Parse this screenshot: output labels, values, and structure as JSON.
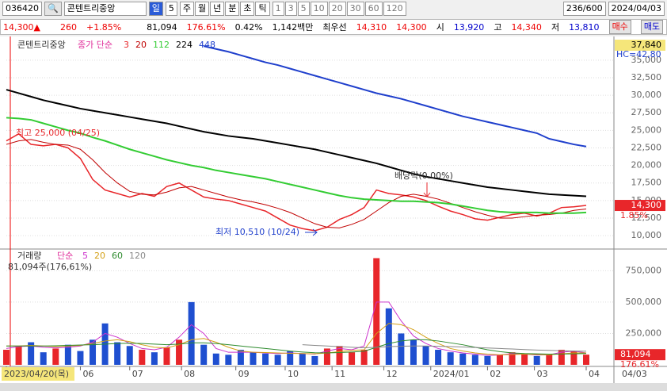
{
  "toolbar": {
    "code": "036420",
    "name": "콘텐트리중앙",
    "period": "일",
    "period_n": "5",
    "units": [
      "주",
      "월",
      "년",
      "분",
      "초",
      "틱"
    ],
    "nums": [
      "1",
      "3",
      "5",
      "10",
      "20",
      "30",
      "60",
      "120"
    ],
    "count": "236/600",
    "date": "2024/04/03"
  },
  "quote": {
    "price": "14,300▲",
    "change": "260",
    "rate": "+1.85%",
    "volume": "81,094",
    "vol_rate": "176.61%",
    "turnover": "0.42%",
    "amount": "1,142백만",
    "best": "최우선",
    "ask": "14,310",
    "bid": "14,300",
    "open_label": "시",
    "open": "13,920",
    "high_label": "고",
    "high": "14,340",
    "low_label": "저",
    "low": "13,810",
    "buy": "매수",
    "sell": "매도"
  },
  "chart_data": [
    {
      "type": "line",
      "legend_name": "콘텐트리중앙",
      "legend_prefix": "종가 단순",
      "top_label": "37,840",
      "hc_label": "HC=42,80",
      "last_label": "14,300",
      "last_rate": "1.85%",
      "annotations": [
        "최고 25,000 (04/25)",
        "최저 10,510 (10/24)",
        "배당락(0.00%)"
      ],
      "x": [
        0,
        5,
        10,
        15,
        20,
        25,
        30,
        35,
        40,
        45,
        50,
        55,
        60,
        65,
        70,
        75,
        80,
        85,
        90,
        95,
        100,
        105,
        110,
        115,
        120,
        125,
        130,
        135,
        140,
        145,
        150,
        155,
        160,
        165,
        170,
        175,
        180,
        185,
        190,
        195,
        200,
        205,
        210,
        215,
        220,
        225,
        230,
        235
      ],
      "xlim": [
        0,
        235
      ],
      "xticks": [
        {
          "value": 0,
          "label": "2023/04/20(목)"
        },
        {
          "value": 30,
          "label": "06"
        },
        {
          "value": 50,
          "label": "07"
        },
        {
          "value": 71,
          "label": "08"
        },
        {
          "value": 93,
          "label": "09"
        },
        {
          "value": 113,
          "label": "10"
        },
        {
          "value": 132,
          "label": "11"
        },
        {
          "value": 153,
          "label": "12"
        },
        {
          "value": 172,
          "label": "2024/01"
        },
        {
          "value": 195,
          "label": "02"
        },
        {
          "value": 214,
          "label": "03"
        },
        {
          "value": 235,
          "label": "04"
        }
      ],
      "xaxis_end": "04/03",
      "ylim": [
        8200,
        37700
      ],
      "yticks": [
        {
          "value": 10000,
          "label": "10,000"
        },
        {
          "value": 12500,
          "label": "12,500"
        },
        {
          "value": 15000,
          "label": "15,000"
        },
        {
          "value": 17500,
          "label": "17,500"
        },
        {
          "value": 20000,
          "label": "20,000"
        },
        {
          "value": 22500,
          "label": "22,500"
        },
        {
          "value": 25000,
          "label": "25,000"
        },
        {
          "value": 27500,
          "label": "27,500"
        },
        {
          "value": 30000,
          "label": "30,000"
        },
        {
          "value": 32500,
          "label": "32,500"
        },
        {
          "value": 35000,
          "label": "35,000"
        }
      ],
      "series": [
        {
          "name": "3",
          "color": "#e8262a",
          "values": [
            23500,
            24500,
            23000,
            22800,
            23000,
            22500,
            21000,
            18000,
            16500,
            16000,
            15500,
            16000,
            15600,
            17000,
            17500,
            16500,
            15500,
            15200,
            15000,
            14500,
            14000,
            13500,
            12500,
            11500,
            11000,
            10700,
            11200,
            12300,
            13000,
            14000,
            16500,
            16000,
            15800,
            15500,
            15000,
            14200,
            13500,
            13000,
            12400,
            12200,
            12600,
            13000,
            13200,
            12800,
            13200,
            14000,
            14100,
            14300
          ]
        },
        {
          "name": "20",
          "color": "#c00000",
          "values": [
            23000,
            23500,
            23700,
            23300,
            23000,
            22900,
            22300,
            20800,
            19000,
            17500,
            16300,
            15900,
            15800,
            16200,
            16800,
            17000,
            16500,
            16000,
            15500,
            15100,
            14800,
            14400,
            13900,
            13300,
            12500,
            11700,
            11200,
            11100,
            11600,
            12300,
            13500,
            14700,
            15600,
            15900,
            15600,
            15200,
            14600,
            14000,
            13400,
            12900,
            12500,
            12500,
            12700,
            12900,
            13000,
            13200,
            13600,
            13800
          ]
        },
        {
          "name": "112",
          "color": "#33cc33",
          "values": [
            26800,
            26700,
            26500,
            26000,
            25500,
            25000,
            24600,
            24000,
            23500,
            22900,
            22300,
            21800,
            21300,
            20800,
            20400,
            20000,
            19700,
            19300,
            19000,
            18700,
            18400,
            18100,
            17700,
            17300,
            16900,
            16500,
            16100,
            15700,
            15400,
            15200,
            15100,
            15000,
            14900,
            14900,
            14800,
            14700,
            14500,
            14200,
            13900,
            13600,
            13400,
            13300,
            13300,
            13300,
            13200,
            13200,
            13200,
            13300
          ]
        },
        {
          "name": "224",
          "color": "#000000",
          "values": [
            30800,
            30300,
            29800,
            29300,
            28900,
            28500,
            28100,
            27800,
            27500,
            27200,
            26900,
            26600,
            26300,
            26000,
            25600,
            25200,
            24800,
            24500,
            24200,
            24000,
            23800,
            23500,
            23200,
            22900,
            22600,
            22300,
            21900,
            21500,
            21100,
            20700,
            20300,
            19800,
            19300,
            18800,
            18400,
            18100,
            17800,
            17500,
            17200,
            16900,
            16700,
            16500,
            16300,
            16100,
            15900,
            15800,
            15700,
            15600
          ]
        },
        {
          "name": "448",
          "color": "#1f3fcc",
          "values": [
            null,
            null,
            null,
            null,
            null,
            null,
            null,
            null,
            null,
            null,
            null,
            null,
            null,
            null,
            null,
            null,
            37000,
            36600,
            36200,
            35700,
            35200,
            34700,
            34300,
            33800,
            33300,
            32800,
            32300,
            31800,
            31300,
            30800,
            30300,
            29900,
            29500,
            29000,
            28500,
            28000,
            27500,
            27000,
            26600,
            26200,
            25800,
            25400,
            25000,
            24600,
            23800,
            23400,
            23000,
            22700
          ]
        }
      ]
    },
    {
      "type": "bar",
      "legend_name": "거래량",
      "legend_prefix": "단순",
      "info": "81,094주(176,61%)",
      "last_label": "81,094",
      "last_rate": "176.61%",
      "up_color": "#e8262a",
      "down_color": "#1f4fd0",
      "ylim": [
        0,
        910000
      ],
      "yticks": [
        {
          "value": 250000,
          "label": "250,000"
        },
        {
          "value": 500000,
          "label": "500,000"
        },
        {
          "value": 750000,
          "label": "750,000"
        }
      ],
      "values": [
        120000,
        150000,
        180000,
        100000,
        130000,
        160000,
        110000,
        200000,
        330000,
        180000,
        150000,
        120000,
        100000,
        140000,
        200000,
        500000,
        160000,
        90000,
        80000,
        120000,
        100000,
        90000,
        80000,
        110000,
        90000,
        70000,
        130000,
        150000,
        100000,
        120000,
        850000,
        450000,
        250000,
        200000,
        150000,
        120000,
        100000,
        90000,
        80000,
        70000,
        80000,
        100000,
        90000,
        70000,
        80000,
        120000,
        110000,
        81094
      ],
      "series": [
        {
          "name": "5",
          "color": "#cc33cc",
          "values": [
            130000,
            145000,
            150000,
            140000,
            135000,
            140000,
            150000,
            180000,
            250000,
            220000,
            170000,
            130000,
            120000,
            140000,
            220000,
            320000,
            250000,
            130000,
            100000,
            100000,
            100000,
            95000,
            90000,
            95000,
            90000,
            85000,
            110000,
            130000,
            120000,
            150000,
            500000,
            500000,
            350000,
            230000,
            170000,
            130000,
            110000,
            95000,
            85000,
            75000,
            78000,
            90000,
            85000,
            78000,
            80000,
            100000,
            110000,
            95000
          ]
        },
        {
          "name": "20",
          "color": "#d4a017",
          "values": [
            150000,
            150000,
            155000,
            150000,
            145000,
            150000,
            155000,
            170000,
            190000,
            200000,
            185000,
            160000,
            140000,
            135000,
            160000,
            200000,
            210000,
            180000,
            140000,
            110000,
            100000,
            98000,
            95000,
            92000,
            90000,
            88000,
            95000,
            105000,
            115000,
            120000,
            250000,
            330000,
            320000,
            280000,
            220000,
            170000,
            130000,
            110000,
            95000,
            85000,
            80000,
            82000,
            85000,
            82000,
            80000,
            88000,
            95000,
            95000
          ]
        },
        {
          "name": "60",
          "color": "#2e8b2e",
          "values": [
            150000,
            150000,
            150000,
            150000,
            152000,
            155000,
            158000,
            160000,
            165000,
            170000,
            172000,
            170000,
            165000,
            160000,
            165000,
            175000,
            175000,
            170000,
            160000,
            150000,
            140000,
            130000,
            120000,
            110000,
            102000,
            96000,
            95000,
            98000,
            102000,
            108000,
            140000,
            170000,
            190000,
            200000,
            200000,
            190000,
            175000,
            160000,
            140000,
            120000,
            105000,
            95000,
            90000,
            88000,
            85000,
            86000,
            88000,
            90000
          ]
        },
        {
          "name": "120",
          "color": "#888888",
          "values": [
            null,
            null,
            null,
            null,
            null,
            null,
            null,
            null,
            null,
            null,
            null,
            null,
            null,
            null,
            null,
            null,
            null,
            null,
            null,
            null,
            null,
            null,
            null,
            null,
            160000,
            155000,
            150000,
            145000,
            140000,
            136000,
            140000,
            145000,
            148000,
            150000,
            150000,
            148000,
            145000,
            142000,
            138000,
            134000,
            130000,
            126000,
            122000,
            118000,
            115000,
            112000,
            110000,
            108000
          ]
        }
      ]
    }
  ]
}
